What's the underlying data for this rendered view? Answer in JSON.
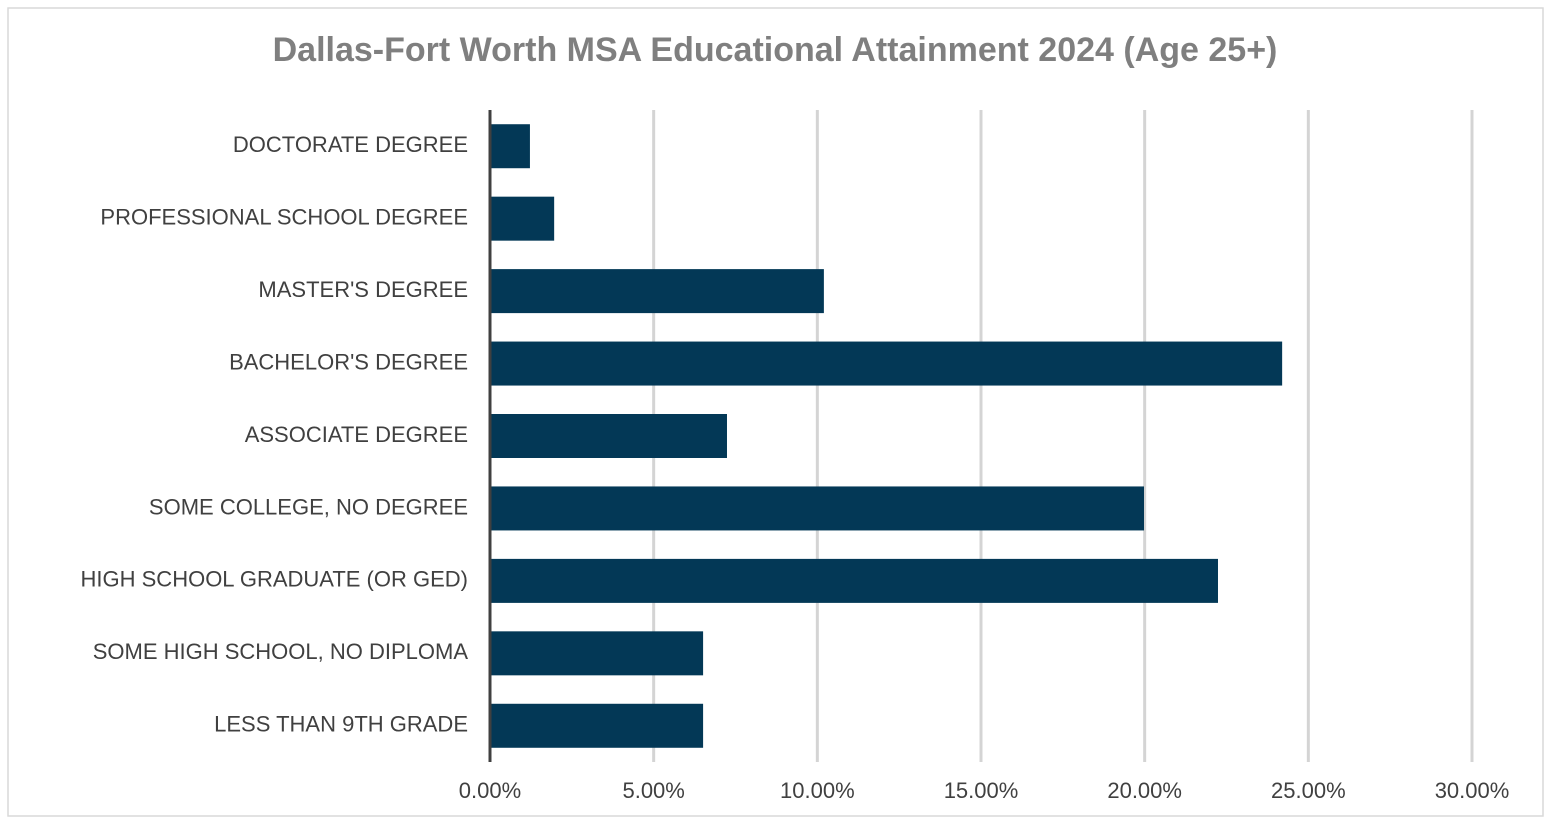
{
  "chart_data": {
    "type": "barh",
    "title": "Dallas-Fort Worth MSA Educational Attainment 2024 (Age 25+)",
    "categories": [
      "DOCTORATE DEGREE",
      "PROFESSIONAL SCHOOL DEGREE",
      "MASTER'S DEGREE",
      "BACHELOR'S DEGREE",
      "ASSOCIATE DEGREE",
      "SOME COLLEGE, NO DEGREE",
      "HIGH SCHOOL GRADUATE (OR GED)",
      "SOME HIGH SCHOOL, NO DIPLOMA",
      "LESS THAN 9TH GRADE"
    ],
    "values": [
      1.22,
      1.96,
      10.2,
      24.2,
      7.24,
      19.98,
      22.24,
      6.51,
      6.51
    ],
    "color": "#033856",
    "xlim": [
      0,
      30
    ],
    "xticks": [
      {
        "value": 0,
        "label": "0.00%"
      },
      {
        "value": 5,
        "label": "5.00%"
      },
      {
        "value": 10,
        "label": "10.00%"
      },
      {
        "value": 15,
        "label": "15.00%"
      },
      {
        "value": 20,
        "label": "20.00%"
      },
      {
        "value": 25,
        "label": "25.00%"
      },
      {
        "value": 30,
        "label": "30.00%"
      }
    ],
    "grid": true
  }
}
